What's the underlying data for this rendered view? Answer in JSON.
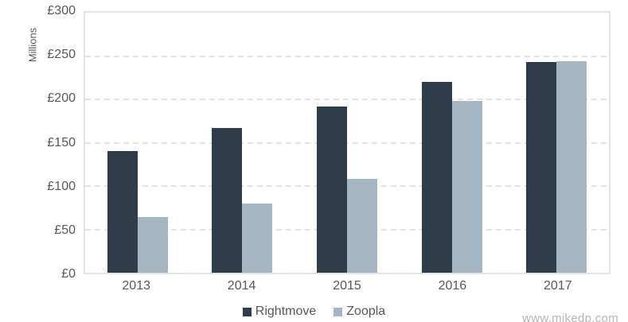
{
  "watermark": "www.mikedp.com",
  "colors": {
    "rightmove": "#2e3d49",
    "zoopla": "#a4b6c3",
    "grid": "#e2e2e2",
    "plot_border": "#e4e4e4",
    "text": "#575757",
    "watermark": "#b5b5b5"
  },
  "chart_data": {
    "type": "bar",
    "title": "",
    "categories": [
      "2013",
      "2014",
      "2015",
      "2016",
      "2017"
    ],
    "series": [
      {
        "name": "Rightmove",
        "color": "#2e3d49",
        "values": [
          140,
          167,
          192,
          220,
          243
        ]
      },
      {
        "name": "Zoopla",
        "color": "#a4b6c3",
        "values": [
          64,
          80,
          108,
          198,
          244
        ]
      }
    ],
    "xlabel": "",
    "ylabel": "Millions",
    "ylim": [
      0,
      300
    ],
    "y_tick_step": 50,
    "y_tick_labels": [
      "£0",
      "£50",
      "£100",
      "£150",
      "£200",
      "£250",
      "£300"
    ],
    "grid": "horizontal-dashed",
    "legend_position": "bottom-center"
  }
}
